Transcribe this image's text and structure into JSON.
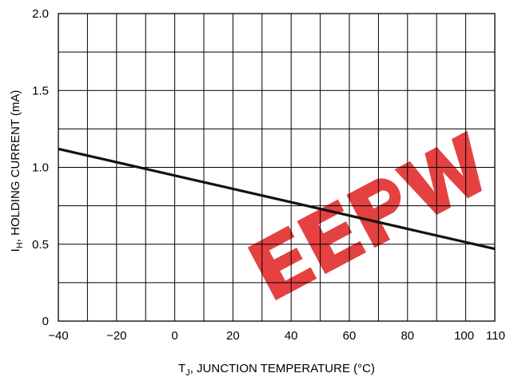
{
  "chart_data": {
    "type": "line",
    "title": "",
    "xlabel": {
      "main": "T",
      "sub": "J",
      "rest": ", JUNCTION TEMPERATURE (°C)"
    },
    "ylabel": {
      "main": "I",
      "sub": "H",
      "rest": ", HOLDING CURRENT (mA)"
    },
    "xlim": [
      -40,
      110
    ],
    "ylim": [
      0,
      2.0
    ],
    "x_ticks": [
      -40,
      -20,
      0,
      20,
      40,
      60,
      80,
      100,
      110
    ],
    "x_tick_labels": [
      "−40",
      "−20",
      "0",
      "20",
      "40",
      "60",
      "80",
      "100",
      "110"
    ],
    "y_ticks": [
      0,
      0.5,
      1.0,
      1.5,
      2.0
    ],
    "y_tick_labels": [
      "0",
      "0.5",
      "1.0",
      "1.5",
      "2.0"
    ],
    "x_grid_step": 10,
    "y_grid_step": 0.25,
    "grid": true,
    "series": [
      {
        "x": [
          -40,
          110
        ],
        "y": [
          1.12,
          0.47
        ]
      }
    ],
    "watermark": {
      "text": "EEPW",
      "color": "#e01818"
    }
  }
}
